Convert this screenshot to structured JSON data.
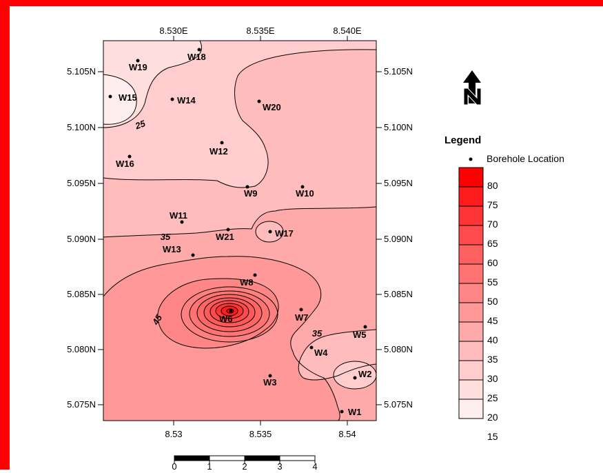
{
  "frame_color": "#ff0000",
  "map": {
    "top_ticks": [
      "8.530E",
      "8.535E",
      "8.540E"
    ],
    "bottom_ticks": [
      "8.53",
      "8.535",
      "8.54"
    ],
    "left_ticks": [
      "5.105N",
      "5.100N",
      "5.095N",
      "5.090N",
      "5.085N",
      "5.080N",
      "5.075N"
    ],
    "right_ticks": [
      "5.105N",
      "5.100N",
      "5.095N",
      "5.090N",
      "5.085N",
      "5.080N",
      "5.075N"
    ],
    "contour_labels": [
      "25",
      "35",
      "35",
      "45"
    ],
    "wells": [
      {
        "name": "W1"
      },
      {
        "name": "W2"
      },
      {
        "name": "W3"
      },
      {
        "name": "W4"
      },
      {
        "name": "W5"
      },
      {
        "name": "W6"
      },
      {
        "name": "W7"
      },
      {
        "name": "W8"
      },
      {
        "name": "W9"
      },
      {
        "name": "W10"
      },
      {
        "name": "W11"
      },
      {
        "name": "W12"
      },
      {
        "name": "W13"
      },
      {
        "name": "W14"
      },
      {
        "name": "W15"
      },
      {
        "name": "W16"
      },
      {
        "name": "W17"
      },
      {
        "name": "W18"
      },
      {
        "name": "W19"
      },
      {
        "name": "W20"
      },
      {
        "name": "W21"
      }
    ]
  },
  "north_arrow": {
    "icon": "north-arrow-icon"
  },
  "legend": {
    "title": "Legend",
    "borehole_label": "Borehole Location",
    "scale_values": [
      "80",
      "75",
      "70",
      "65",
      "60",
      "55",
      "50",
      "45",
      "40",
      "35",
      "30",
      "25",
      "20",
      "15"
    ],
    "scale_colors": [
      "#ff0000",
      "#ff1c1c",
      "#ff3434",
      "#ff4b4b",
      "#ff6060",
      "#ff7373",
      "#ff8686",
      "#ff9898",
      "#ffaaaa",
      "#ffbcbc",
      "#ffcdcd",
      "#ffdede",
      "#ffeeee"
    ]
  },
  "scalebar": {
    "ticks": [
      "0",
      "1",
      "2",
      "3",
      "4"
    ]
  }
}
